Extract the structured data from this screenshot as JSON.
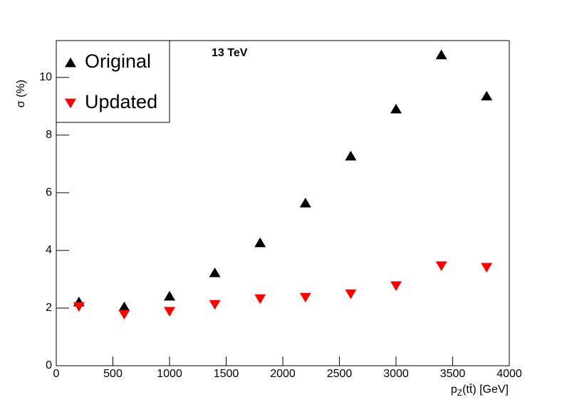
{
  "chart_data": {
    "type": "scatter",
    "annotation": "13 TeV",
    "xlabel": {
      "main": "p",
      "sub": "Z",
      "rest": "(tt̄) [GeV]"
    },
    "ylabel": "σ (%)",
    "xlim": [
      0,
      4000
    ],
    "ylim": [
      0,
      11.28
    ],
    "xticks": [
      0,
      500,
      1000,
      1500,
      2000,
      2500,
      3000,
      3500,
      4000
    ],
    "yticks": [
      0,
      2,
      4,
      6,
      8,
      10
    ],
    "grid": false,
    "legend": "top-left",
    "series": [
      {
        "name": "Original",
        "color": "#000000",
        "marker": "triangle-up",
        "x": [
          200,
          600,
          1000,
          1400,
          1800,
          2200,
          2600,
          3000,
          3400,
          3800
        ],
        "values": [
          2.22,
          2.05,
          2.42,
          3.23,
          4.27,
          5.65,
          7.28,
          8.91,
          10.79,
          9.36
        ]
      },
      {
        "name": "Updated",
        "color": "#ff0000",
        "marker": "triangle-down",
        "x": [
          200,
          600,
          1000,
          1400,
          1800,
          2200,
          2600,
          3000,
          3400,
          3800
        ],
        "values": [
          2.05,
          1.78,
          1.88,
          2.12,
          2.32,
          2.37,
          2.49,
          2.77,
          3.46,
          3.41
        ]
      }
    ]
  }
}
